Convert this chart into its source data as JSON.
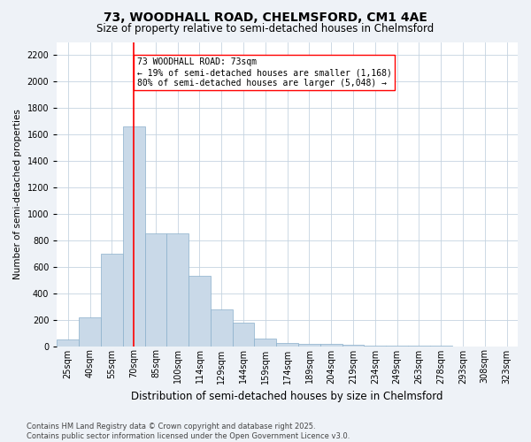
{
  "title_line1": "73, WOODHALL ROAD, CHELMSFORD, CM1 4AE",
  "title_line2": "Size of property relative to semi-detached houses in Chelmsford",
  "xlabel": "Distribution of semi-detached houses by size in Chelmsford",
  "ylabel": "Number of semi-detached properties",
  "categories": [
    "25sqm",
    "40sqm",
    "55sqm",
    "70sqm",
    "85sqm",
    "100sqm",
    "114sqm",
    "129sqm",
    "144sqm",
    "159sqm",
    "174sqm",
    "189sqm",
    "204sqm",
    "219sqm",
    "234sqm",
    "249sqm",
    "263sqm",
    "278sqm",
    "293sqm",
    "308sqm",
    "323sqm"
  ],
  "values": [
    50,
    220,
    700,
    1660,
    850,
    850,
    530,
    280,
    180,
    60,
    25,
    20,
    15,
    8,
    5,
    3,
    2,
    1,
    0,
    0,
    0
  ],
  "bar_color": "#c9d9e8",
  "bar_edge_color": "#8ab0cc",
  "vline_x_idx": 3,
  "vline_color": "red",
  "annotation_text": "73 WOODHALL ROAD: 73sqm\n← 19% of semi-detached houses are smaller (1,168)\n80% of semi-detached houses are larger (5,048) →",
  "annotation_box_color": "white",
  "annotation_box_edge_color": "red",
  "ylim": [
    0,
    2300
  ],
  "yticks": [
    0,
    200,
    400,
    600,
    800,
    1000,
    1200,
    1400,
    1600,
    1800,
    2000,
    2200
  ],
  "footer_line1": "Contains HM Land Registry data © Crown copyright and database right 2025.",
  "footer_line2": "Contains public sector information licensed under the Open Government Licence v3.0.",
  "bg_color": "#eef2f7",
  "plot_bg_color": "#ffffff",
  "grid_color": "#c5d3e0",
  "title_fontsize": 10,
  "subtitle_fontsize": 8.5,
  "ylabel_fontsize": 7.5,
  "xlabel_fontsize": 8.5,
  "tick_fontsize": 7,
  "annot_fontsize": 7,
  "footer_fontsize": 6
}
